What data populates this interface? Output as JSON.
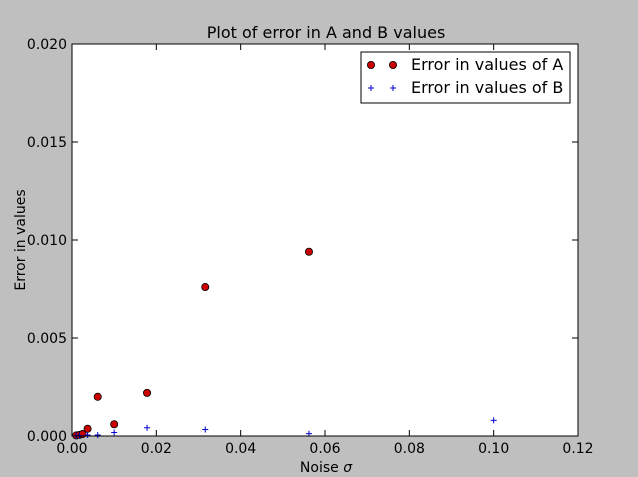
{
  "chart_data": {
    "type": "scatter",
    "title": "Plot of error in A and B values",
    "xlabel": "Noise",
    "xlabel_symbol": "σ",
    "ylabel": "Error in values",
    "xlim": [
      0.0,
      0.12
    ],
    "ylim": [
      0.0,
      0.02
    ],
    "xticks": [
      "0.00",
      "0.02",
      "0.04",
      "0.06",
      "0.08",
      "0.10",
      "0.12"
    ],
    "yticks": [
      "0.000",
      "0.005",
      "0.010",
      "0.015",
      "0.020"
    ],
    "grid": false,
    "legend_position": "top-right",
    "series": [
      {
        "name": "Error in values of A",
        "marker": "circle",
        "color": "#cc0000",
        "edge_color": "#000000",
        "points": [
          {
            "x": 0.001,
            "y": 3e-05
          },
          {
            "x": 0.0018,
            "y": 6e-05
          },
          {
            "x": 0.0025,
            "y": 0.0001
          },
          {
            "x": 0.0037,
            "y": 0.00037
          },
          {
            "x": 0.0061,
            "y": 0.002
          },
          {
            "x": 0.01,
            "y": 0.0006
          },
          {
            "x": 0.0178,
            "y": 0.0022
          },
          {
            "x": 0.0316,
            "y": 0.0076
          },
          {
            "x": 0.0562,
            "y": 0.0094
          }
        ]
      },
      {
        "name": "Error in values of B",
        "marker": "plus",
        "color": "#0000cc",
        "points": [
          {
            "x": 0.001,
            "y": 1e-05
          },
          {
            "x": 0.0018,
            "y": 2e-05
          },
          {
            "x": 0.0037,
            "y": 5e-05
          },
          {
            "x": 0.0061,
            "y": 5e-05
          },
          {
            "x": 0.01,
            "y": 0.00018
          },
          {
            "x": 0.0178,
            "y": 0.00042
          },
          {
            "x": 0.0316,
            "y": 0.00033
          },
          {
            "x": 0.0562,
            "y": 0.00012
          },
          {
            "x": 0.1,
            "y": 0.0008
          }
        ]
      }
    ]
  }
}
